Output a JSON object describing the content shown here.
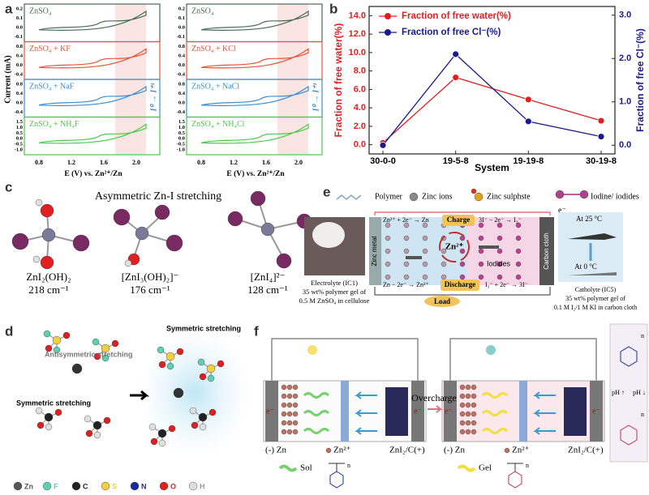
{
  "panel_a": {
    "label": "a",
    "y_label": "Current (mA)",
    "x_label": "E (V) vs. Zn²⁺/Zn",
    "left_traces": [
      "ZnSO₄",
      "ZnSO₄ + KF",
      "ZnSO₄ + NaF",
      "ZnSO₄ + NH₄F"
    ],
    "right_traces": [
      "ZnSO₄",
      "ZnSO₄ + KCl",
      "ZnSO₄ + NaCl",
      "ZnSO₄ + NH₄Cl"
    ],
    "x_ticks": [
      "0.8",
      "1.2",
      "1.6",
      "2.0"
    ],
    "y_ticks": [
      [
        "0.2",
        "0.1",
        "0.0",
        "-0.1"
      ],
      [
        "0.8",
        "0.4",
        "0.0",
        "-0.4"
      ],
      [
        "0.8",
        "0.4",
        "0.0",
        "-0.4"
      ],
      [
        "1.5",
        "1.0",
        "0.5",
        "0.0",
        "-0.5",
        "-1.0"
      ]
    ],
    "annotation": "I⁰ → I⁺¹"
  },
  "chart_data": {
    "type": "line",
    "label": "b",
    "x_label": "System",
    "y_label": "Fraction of free water(%)",
    "y2_label": "Fraction of free Cl⁻(%)",
    "categories": [
      "30-0-0",
      "19-5-8",
      "19-19-8",
      "30-19-8"
    ],
    "series": [
      {
        "name": "Fraction of free water(%)",
        "color": "#e02020",
        "values": [
          0.2,
          7.3,
          4.9,
          2.6
        ]
      },
      {
        "name": "Fraction of free Cl⁻(%)",
        "color": "#1a1a8c",
        "axis": "y2",
        "values": [
          0.0,
          2.1,
          0.55,
          0.2
        ]
      }
    ],
    "ylim": [
      -1,
      15
    ],
    "yticks": [
      {
        "value": 0,
        "label": "0.0"
      },
      {
        "value": 2,
        "label": "2.0"
      },
      {
        "value": 4,
        "label": "4.0"
      },
      {
        "value": 6,
        "label": "6.0"
      },
      {
        "value": 8,
        "label": "8.0"
      },
      {
        "value": 10,
        "label": "10.0"
      },
      {
        "value": 12,
        "label": "12.0"
      },
      {
        "value": 14,
        "label": "14.0"
      }
    ],
    "y2lim": [
      -0.2,
      3.2
    ],
    "y2ticks": [
      {
        "value": 0,
        "label": "0.0"
      },
      {
        "value": 1,
        "label": "1.0"
      },
      {
        "value": 2,
        "label": "2.0"
      },
      {
        "value": 3,
        "label": "3.0"
      }
    ],
    "legend": "upper left"
  },
  "panel_c": {
    "label": "c",
    "title": "Asymmetric Zn-I stretching",
    "species": [
      {
        "formula": "ZnI₂(OH)₂",
        "frequency": "218 cm⁻¹"
      },
      {
        "formula": "[ZnI₃(OH)₂]⁻",
        "frequency": "176 cm⁻¹"
      },
      {
        "formula": "[ZnI₄]²⁻",
        "frequency": "128 cm⁻¹"
      }
    ]
  },
  "panel_d": {
    "label": "d",
    "annotations": [
      "Antisymmetric stretching",
      "Symmetric stretching",
      "Symmetric stretching"
    ],
    "legend": [
      "Zn",
      "F",
      "C",
      "S",
      "N",
      "O",
      "H"
    ]
  },
  "panel_e": {
    "label": "e",
    "legend": [
      "Polymer",
      "Zinc ions",
      "Zinc sulphste",
      "Iodine/ iodides"
    ],
    "charge": {
      "anode": "Zn²⁺ + 2e⁻ → Zn",
      "label": "Charge",
      "cathode": "3I⁻ − 2e⁻ → I₃⁻"
    },
    "discharge": {
      "anode": "Zn − 2e⁻ → Zn²⁺",
      "label": "Discharge",
      "cathode": "I₃⁻ + 2e⁻ → 3I⁻"
    },
    "electron": "e⁻",
    "load": "Load",
    "anode": "Zinc metal",
    "cathode": "Carbon cloth",
    "ion": "Zn²⁺",
    "iodides": "Iodides",
    "temperatures": [
      "At 25 °C",
      "At 0 °C"
    ],
    "electrolyte": [
      "Electrolyte (IC1)",
      "35 wt% polymer gel of",
      "0.5 M ZnSO₄ in cellulose"
    ],
    "catholyte": [
      "Catholyte (IC5)",
      "35 wt% polymer gel of",
      "0.1 M I₂/1 M KI in carbon cloth"
    ]
  },
  "panel_f": {
    "label": "f",
    "process": "Overcharge",
    "anode": "(-) Zn",
    "ion": "Zn²⁺",
    "cathode": "ZnI₂/C(+)",
    "electron": "e⁻",
    "states": [
      "Sol",
      "Gel"
    ],
    "ph": [
      "pH ↑",
      "pH ↓"
    ],
    "repeat_unit": "n"
  }
}
